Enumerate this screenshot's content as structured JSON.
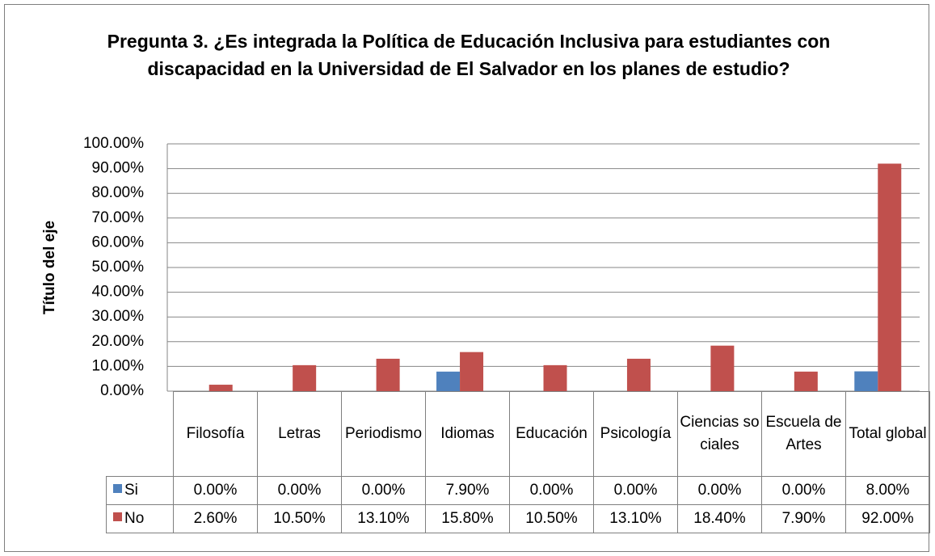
{
  "chart_data": {
    "type": "bar",
    "title": "Pregunta 3. ¿Es integrada la Política de Educación Inclusiva para estudiantes con discapacidad en la Universidad de El Salvador  en los planes de estudio?",
    "y_axis_label": "Título del eje",
    "categories": [
      "Filosofía",
      "Letras",
      "Periodismo",
      "Idiomas",
      "Educación",
      "Psicología",
      "Ciencias sociales",
      "Escuela de Artes",
      "Total global"
    ],
    "series": [
      {
        "name": "Si",
        "color": "#4f81bd",
        "values": [
          0,
          0,
          0,
          7.9,
          0,
          0,
          0,
          0,
          8
        ],
        "value_labels": [
          "0.00%",
          "0.00%",
          "0.00%",
          "7.90%",
          "0.00%",
          "0.00%",
          "0.00%",
          "0.00%",
          "8.00%"
        ]
      },
      {
        "name": "No",
        "color": "#c0504d",
        "values": [
          2.6,
          10.5,
          13.1,
          15.8,
          10.5,
          13.1,
          18.4,
          7.9,
          92
        ],
        "value_labels": [
          "2.60%",
          "10.50%",
          "13.10%",
          "15.80%",
          "10.50%",
          "13.10%",
          "18.40%",
          "7.90%",
          "92.00%"
        ]
      }
    ],
    "ylim": [
      0,
      100
    ],
    "yticks": [
      {
        "value": 0,
        "label": "0.00%"
      },
      {
        "value": 10,
        "label": "10.00%"
      },
      {
        "value": 20,
        "label": "20.00%"
      },
      {
        "value": 30,
        "label": "30.00%"
      },
      {
        "value": 40,
        "label": "40.00%"
      },
      {
        "value": 50,
        "label": "50.00%"
      },
      {
        "value": 60,
        "label": "60.00%"
      },
      {
        "value": 70,
        "label": "70.00%"
      },
      {
        "value": 80,
        "label": "80.00%"
      },
      {
        "value": 90,
        "label": "90.00%"
      },
      {
        "value": 100,
        "label": "100.00%"
      }
    ],
    "grid": true
  }
}
